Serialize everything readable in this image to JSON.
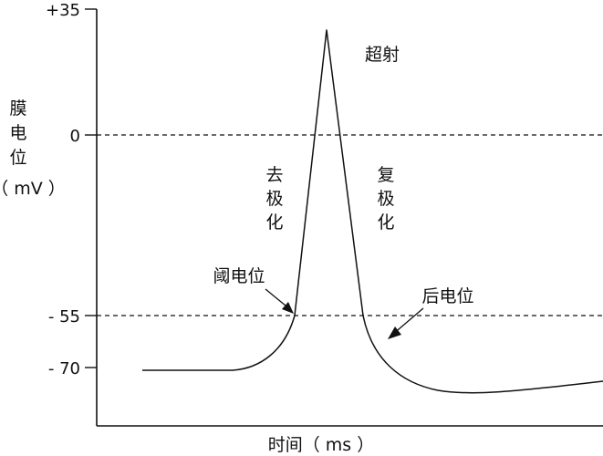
{
  "y_ticks": [
    {
      "label": "+35",
      "value": 35
    },
    {
      "label": "0",
      "value": 0
    },
    {
      "label": "- 55",
      "value": -55
    },
    {
      "label": "- 70",
      "value": -70
    }
  ],
  "y_axis_label_chars": [
    "膜",
    "电",
    "位"
  ],
  "y_axis_unit": "（ mV ）",
  "x_axis_label": "时间（ ms ）",
  "annotations": {
    "overshoot": "超射",
    "depolarization": [
      "去",
      "极",
      "化"
    ],
    "repolarization": [
      "复",
      "极",
      "化"
    ],
    "threshold": "阈电位",
    "afterpotential": "后电位"
  },
  "reference_lines": [
    {
      "value": 0,
      "style": "dashed"
    },
    {
      "value": -55,
      "style": "dashed"
    }
  ],
  "curve": {
    "resting_potential": -70,
    "threshold": -55,
    "peak": 30,
    "undershoot_min": -81
  }
}
